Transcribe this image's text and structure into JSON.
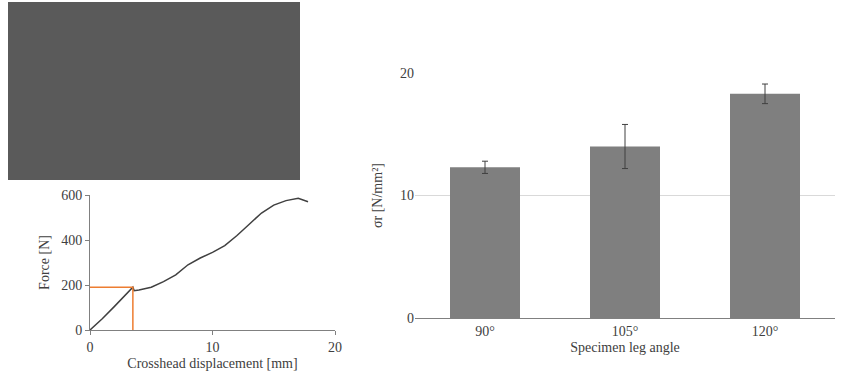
{
  "chart_data": [
    {
      "type": "line",
      "x_label": "Crosshead displacement [mm]",
      "y_label": "Force [N]",
      "xlim": [
        0,
        20
      ],
      "xticks": [
        0,
        10,
        20
      ],
      "ylim": [
        0,
        600
      ],
      "yticks": [
        0,
        200,
        400,
        600
      ],
      "grid": false,
      "series": [
        {
          "color": "#404040",
          "x": [
            0,
            1,
            2,
            3,
            3.5,
            3.6,
            4,
            5,
            6,
            7,
            8,
            9,
            10,
            11,
            12,
            13,
            14,
            15,
            16,
            17,
            17.3,
            17.5,
            17.8
          ],
          "values": [
            0,
            50,
            105,
            160,
            190,
            175,
            178,
            190,
            215,
            245,
            290,
            320,
            345,
            375,
            420,
            470,
            520,
            555,
            575,
            585,
            580,
            575,
            570
          ]
        },
        {
          "color": "#ed7d31",
          "x": [
            0,
            3.5,
            3.5
          ],
          "values": [
            190,
            190,
            0
          ]
        }
      ]
    },
    {
      "type": "bar",
      "x_label": "Specimen leg angle",
      "y_label": "σr [N/mm²]",
      "categories": [
        "90°",
        "105°",
        "120°"
      ],
      "values": [
        12.3,
        14.0,
        18.3
      ],
      "errors": [
        0.5,
        1.8,
        0.8
      ],
      "color": "#7f7f7f",
      "ylim": [
        0,
        20
      ],
      "yticks": [
        0,
        10,
        20
      ],
      "grid": true
    }
  ]
}
